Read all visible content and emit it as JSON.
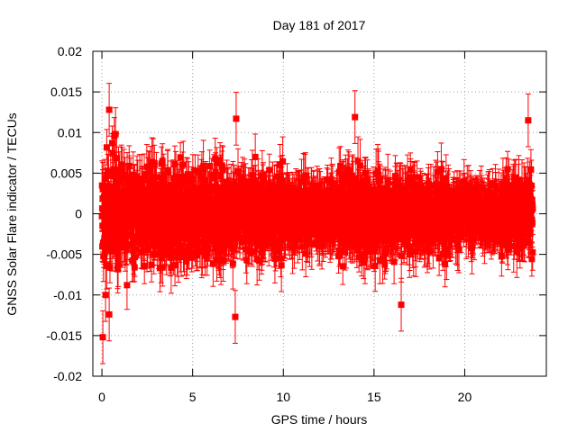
{
  "chart_data": {
    "type": "scatter",
    "title": "Day 181 of 2017",
    "xlabel": "GPS time / hours",
    "ylabel": "GNSS Solar Flare indicator / TECUs",
    "xlim": [
      -0.5,
      24.5
    ],
    "ylim": [
      -0.02,
      0.02
    ],
    "xticks": [
      0,
      5,
      10,
      15,
      20
    ],
    "xtick_labels": [
      "0",
      "5",
      "10",
      "15",
      "20"
    ],
    "yticks": [
      -0.02,
      -0.015,
      -0.01,
      -0.005,
      0,
      0.005,
      0.01,
      0.015,
      0.02
    ],
    "ytick_labels": [
      "-0.02",
      "-0.015",
      "-0.01",
      "-0.005",
      "0",
      "0.005",
      "0.01",
      "0.015",
      "0.02"
    ],
    "grid": true,
    "marker": "square",
    "color": "#ff0000",
    "error_bars": true,
    "series": [
      {
        "x_start": 0.0,
        "x_end": 23.75,
        "sample_count": 2850,
        "typical_abs_value_start": 0.004,
        "typical_abs_value_end": 0.003,
        "typical_error": 0.0025,
        "notable_points": [
          {
            "x": 0.05,
            "y": -0.0152
          },
          {
            "x": 0.2,
            "y": -0.01
          },
          {
            "x": 0.4,
            "y": -0.0124
          },
          {
            "x": 0.4,
            "y": 0.0128
          },
          {
            "x": 0.75,
            "y": 0.0098
          },
          {
            "x": 7.35,
            "y": -0.0127
          },
          {
            "x": 7.4,
            "y": 0.0117
          },
          {
            "x": 13.95,
            "y": 0.0119
          },
          {
            "x": 16.5,
            "y": -0.0112
          },
          {
            "x": 23.5,
            "y": 0.0115
          }
        ]
      }
    ]
  }
}
